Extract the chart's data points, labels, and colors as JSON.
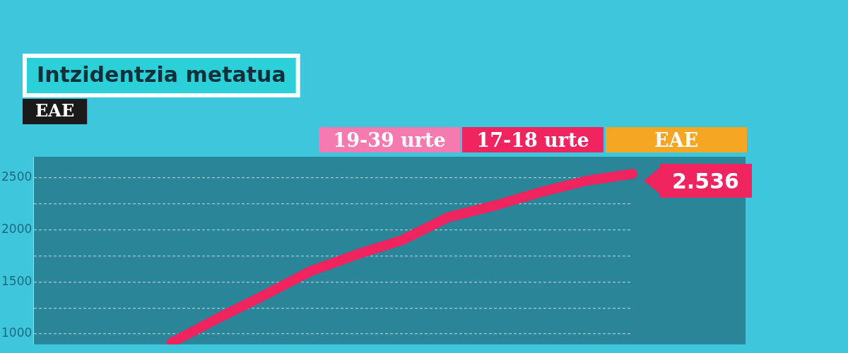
{
  "chart_data": {
    "type": "line",
    "title": "Intzidentzia metatua",
    "subtitle": "EAE",
    "categories": [
      null,
      null,
      null,
      null,
      null,
      null,
      null,
      null,
      null,
      null,
      null,
      null,
      null,
      null
    ],
    "series": [
      {
        "name": "19-39 urte",
        "color": "#f57ab0",
        "values": [
          null,
          null,
          null,
          null,
          null,
          null,
          null,
          null,
          null,
          null,
          null,
          null,
          null,
          null
        ]
      },
      {
        "name": "17-18 urte",
        "color": "#f0245e",
        "values": [
          null,
          null,
          null,
          917,
          1150,
          1370,
          1600,
          1760,
          1900,
          2120,
          2230,
          2360,
          2470,
          2536
        ],
        "value_labels": [
          null,
          null,
          null,
          null,
          null,
          null,
          null,
          null,
          null,
          null,
          null,
          null,
          null,
          "2.536"
        ]
      },
      {
        "name": "EAE",
        "color": "#f5a623",
        "values": [
          null,
          null,
          null,
          null,
          null,
          null,
          null,
          null,
          null,
          null,
          null,
          null,
          null,
          null
        ]
      }
    ],
    "ylim": [
      900,
      2700
    ],
    "yticks": [
      1000,
      {
        "value": 1250,
        "label": null
      },
      1500,
      {
        "value": 1750,
        "label": null
      },
      2000,
      {
        "value": 2250,
        "label": null
      },
      2500
    ],
    "grid": "y",
    "legend": "top right",
    "line_style": "solid",
    "marker": "none"
  }
}
